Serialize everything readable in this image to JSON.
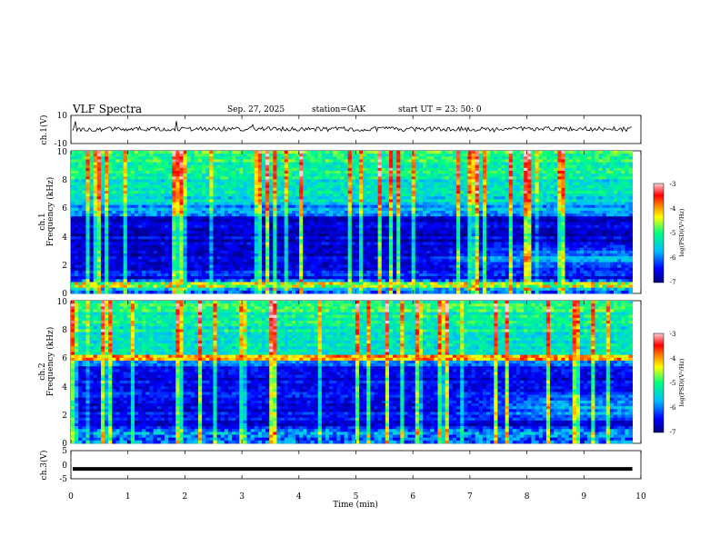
{
  "header": {
    "title": "VLF  Spectra",
    "date": "Sep. 27, 2025",
    "station": "station=GAK",
    "start": "start  UT  =    23: 50: 0"
  },
  "chart_data": {
    "type": "heatmap",
    "title": "VLF  Spectra",
    "xlabel": "Time  (min)",
    "x_ticks": [
      "0",
      "1",
      "2",
      "3",
      "4",
      "5",
      "6",
      "7",
      "8",
      "9",
      "10"
    ],
    "xlim": [
      0,
      10
    ],
    "data_end_min": 9.85,
    "panels": [
      {
        "name": "ch1-waveform",
        "ylabel": "ch.1(V)",
        "ylim": [
          -10,
          10
        ],
        "y_ticks": [
          "10",
          "-10"
        ],
        "trace_level": 0.3
      },
      {
        "name": "ch1-spectrogram",
        "ylabel_top": "ch.1",
        "ylabel": "Frequency  (kHz)",
        "ylim": [
          0,
          10
        ],
        "y_ticks": [
          "0",
          "2",
          "4",
          "6",
          "8",
          "10"
        ]
      },
      {
        "name": "ch2-spectrogram",
        "ylabel_top": "ch.2",
        "ylabel": "Frequency  (kHz)",
        "ylim": [
          0,
          10
        ],
        "y_ticks": [
          "0",
          "2",
          "4",
          "6",
          "8",
          "10"
        ]
      },
      {
        "name": "ch3-waveform",
        "ylabel": "ch.3(V)",
        "ylim": [
          -5,
          5
        ],
        "y_ticks": [
          "5",
          "0",
          "-5"
        ],
        "trace_level": -1.5
      }
    ],
    "colorbar": {
      "label": "log(PSD)(V²/Hz)",
      "range": [
        -7,
        -3
      ],
      "ticks": [
        "-3",
        "-4",
        "-5",
        "-6",
        "-7"
      ],
      "colors": [
        "#000080",
        "#0000ff",
        "#00bfff",
        "#00ff80",
        "#ffff00",
        "#ff8000",
        "#ff0000",
        "#ffd0d0"
      ]
    },
    "ch1_features": {
      "noise_band_khz": [
        6.5,
        10
      ],
      "low_line_khz": [
        0.3,
        0.5,
        0.7
      ],
      "dark_band_khz": [
        2.5,
        5.5
      ],
      "enhanced_emission": {
        "from_min": 6,
        "to_min": 10,
        "freq_khz": [
          1.5,
          3.5
        ]
      }
    },
    "ch2_features": {
      "noise_band_khz": [
        6.2,
        10
      ],
      "line_khz": [
        5.9,
        6.1
      ],
      "low_line_khz": [
        0.3,
        0.5
      ],
      "enhanced_emission": {
        "from_min": 6.5,
        "to_min": 10,
        "freq_khz": [
          1.5,
          3.5
        ]
      }
    }
  }
}
